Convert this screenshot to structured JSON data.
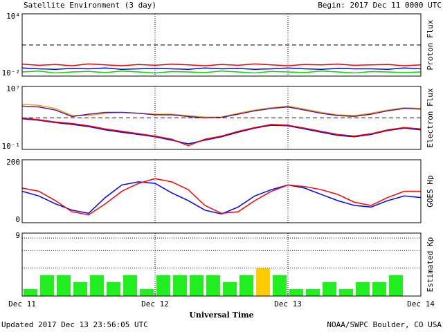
{
  "header": {
    "title": "Satellite Environment (3 day)",
    "begin": "Begin:  2017 Dec 11 0000 UTC"
  },
  "footer": {
    "updated": "Updated 2017 Dec 13 23:56:05 UTC",
    "credit": "NOAA/SWPC Boulder, CO USA"
  },
  "chart_data": [
    {
      "type": "line",
      "ylabel": "Proton Flux",
      "log": true,
      "xlim": [
        0,
        3
      ],
      "xgrid": [
        1,
        2
      ],
      "ylim": [
        0.01,
        10000
      ],
      "yticks": [
        {
          "value": 10000,
          "label": "10⁴"
        },
        {
          "value": 0.01,
          "label": "10⁻²"
        }
      ],
      "threshold": 10,
      "x": [
        0,
        0.125,
        0.25,
        0.375,
        0.5,
        0.625,
        0.75,
        0.875,
        1,
        1.125,
        1.25,
        1.375,
        1.5,
        1.625,
        1.75,
        1.875,
        2,
        2.125,
        2.25,
        2.375,
        2.5,
        2.625,
        2.75,
        2.875,
        3
      ],
      "series": [
        {
          "name": "red",
          "color": "#ff0000",
          "values": [
            0.14,
            0.11,
            0.13,
            0.1,
            0.15,
            0.12,
            0.1,
            0.13,
            0.11,
            0.14,
            0.12,
            0.1,
            0.13,
            0.11,
            0.15,
            0.12,
            0.1,
            0.13,
            0.12,
            0.14,
            0.11,
            0.12,
            0.13,
            0.1,
            0.12
          ]
        },
        {
          "name": "blue",
          "color": "#0000ff",
          "values": [
            0.06,
            0.05,
            0.045,
            0.055,
            0.05,
            0.06,
            0.045,
            0.05,
            0.055,
            0.05,
            0.045,
            0.06,
            0.05,
            0.055,
            0.045,
            0.05,
            0.06,
            0.05,
            0.045,
            0.055,
            0.05,
            0.05,
            0.045,
            0.06,
            0.05
          ]
        },
        {
          "name": "green",
          "color": "#00dd00",
          "values": [
            0.025,
            0.03,
            0.02,
            0.025,
            0.028,
            0.022,
            0.03,
            0.025,
            0.02,
            0.027,
            0.025,
            0.022,
            0.03,
            0.025,
            0.02,
            0.028,
            0.025,
            0.022,
            0.03,
            0.025,
            0.02,
            0.027,
            0.025,
            0.022,
            0.025
          ]
        }
      ]
    },
    {
      "type": "line",
      "ylabel": "Electron Flux",
      "log": true,
      "xlim": [
        0,
        3
      ],
      "xgrid": [
        1,
        2
      ],
      "ylim": [
        0.1,
        10000000
      ],
      "yticks": [
        {
          "value": 10000000,
          "label": "10⁷"
        },
        {
          "value": 0.1,
          "label": "10⁻¹"
        }
      ],
      "threshold": 1000,
      "x": [
        0,
        0.125,
        0.25,
        0.375,
        0.5,
        0.625,
        0.75,
        0.875,
        1,
        1.125,
        1.25,
        1.375,
        1.5,
        1.625,
        1.75,
        1.875,
        2,
        2.125,
        2.25,
        2.375,
        2.5,
        2.625,
        2.75,
        2.875,
        3
      ],
      "series": [
        {
          "name": "orange",
          "color": "#f0a020",
          "values": [
            56000,
            40000,
            16000,
            2000,
            2000,
            4000,
            5000,
            4000,
            3000,
            3000,
            2000,
            1300,
            1300,
            4000,
            10000,
            20000,
            32000,
            13000,
            5000,
            2500,
            2000,
            4000,
            10000,
            20000,
            16000
          ]
        },
        {
          "name": "purple",
          "color": "#5a1a9a",
          "values": [
            32000,
            25000,
            10000,
            1500,
            3000,
            5000,
            5000,
            4000,
            2500,
            2500,
            1500,
            1000,
            1200,
            3000,
            8000,
            16000,
            25000,
            10000,
            4000,
            2000,
            1600,
            3000,
            8000,
            16000,
            13000
          ]
        },
        {
          "name": "blue",
          "color": "#0000ff",
          "values": [
            800,
            500,
            250,
            150,
            80,
            30,
            15,
            8,
            4,
            1.5,
            0.5,
            1.5,
            4,
            15,
            50,
            120,
            100,
            40,
            15,
            6,
            4,
            8,
            25,
            50,
            30
          ]
        },
        {
          "name": "red",
          "color": "#ff0000",
          "values": [
            1000,
            600,
            300,
            200,
            100,
            40,
            20,
            10,
            5,
            2,
            0.3,
            2,
            5,
            20,
            60,
            150,
            120,
            50,
            20,
            8,
            5,
            10,
            30,
            60,
            40
          ]
        }
      ]
    },
    {
      "type": "line",
      "ylabel": "GOES Hp",
      "log": false,
      "xlim": [
        0,
        3
      ],
      "xgrid": [
        1,
        2
      ],
      "ylim": [
        0,
        200
      ],
      "yticks": [
        200,
        0
      ],
      "x": [
        0,
        0.125,
        0.25,
        0.375,
        0.5,
        0.625,
        0.75,
        0.875,
        1,
        1.125,
        1.25,
        1.375,
        1.5,
        1.625,
        1.75,
        1.875,
        2,
        2.125,
        2.25,
        2.375,
        2.5,
        2.625,
        2.75,
        2.875,
        3
      ],
      "series": [
        {
          "name": "blue",
          "color": "#0000ff",
          "values": [
            100,
            85,
            60,
            40,
            30,
            80,
            120,
            130,
            125,
            95,
            70,
            40,
            28,
            50,
            85,
            105,
            120,
            110,
            90,
            70,
            55,
            50,
            70,
            85,
            80
          ]
        },
        {
          "name": "red",
          "color": "#ff0000",
          "values": [
            110,
            100,
            70,
            35,
            25,
            60,
            100,
            125,
            140,
            130,
            105,
            55,
            30,
            35,
            70,
            100,
            120,
            115,
            105,
            90,
            65,
            55,
            80,
            100,
            100
          ]
        }
      ]
    },
    {
      "type": "bar",
      "ylabel": "Estimated Kp",
      "log": false,
      "xlim": [
        0,
        3
      ],
      "xgrid": [
        1,
        2
      ],
      "ylim": [
        0,
        9
      ],
      "yticks": [
        9
      ],
      "dotted": [
        4,
        6.5,
        8.3
      ],
      "xlabel": "Universal Time",
      "xticks": [
        {
          "value": 0,
          "label": "Dec 11"
        },
        {
          "value": 1,
          "label": "Dec 12"
        },
        {
          "value": 2,
          "label": "Dec 13"
        },
        {
          "value": 3,
          "label": "Dec 14"
        }
      ],
      "x": [
        0,
        0.125,
        0.25,
        0.375,
        0.5,
        0.625,
        0.75,
        0.875,
        1,
        1.125,
        1.25,
        1.375,
        1.5,
        1.625,
        1.75,
        1.875,
        2,
        2.125,
        2.25,
        2.375,
        2.5,
        2.625,
        2.75
      ],
      "values": [
        1,
        3,
        3,
        2,
        3,
        2,
        3,
        1,
        3,
        3,
        3,
        3,
        2,
        3,
        4,
        3,
        1,
        1,
        2,
        1,
        2,
        2,
        3
      ],
      "colors": [
        "#22ee22",
        "#22ee22",
        "#22ee22",
        "#22ee22",
        "#22ee22",
        "#22ee22",
        "#22ee22",
        "#22ee22",
        "#22ee22",
        "#22ee22",
        "#22ee22",
        "#22ee22",
        "#22ee22",
        "#22ee22",
        "#ffcc00",
        "#22ee22",
        "#22ee22",
        "#22ee22",
        "#22ee22",
        "#22ee22",
        "#22ee22",
        "#22ee22",
        "#22ee22"
      ]
    }
  ]
}
